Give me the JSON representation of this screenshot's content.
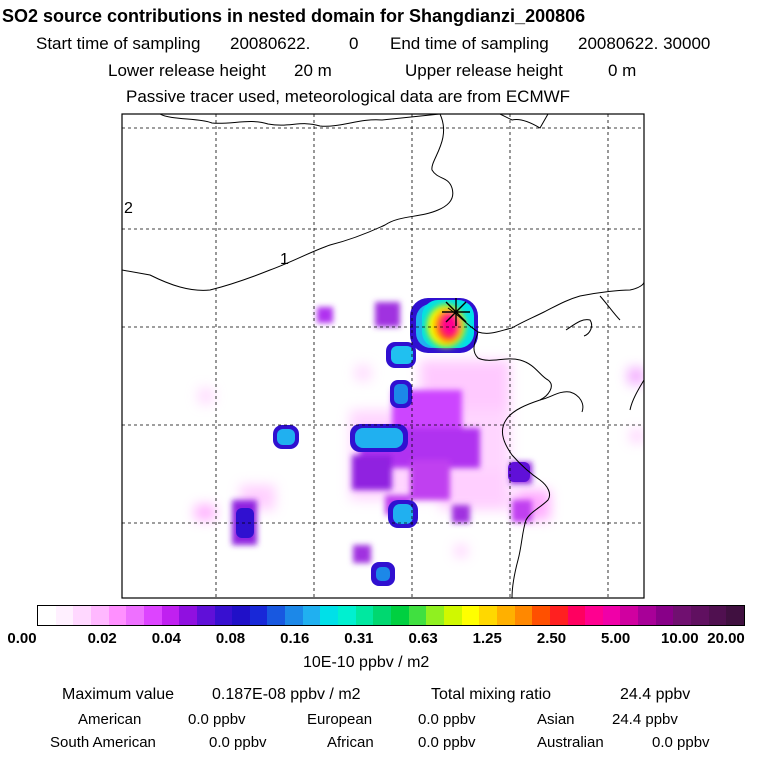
{
  "header": {
    "title": "SO2 source contributions in nested domain for Shangdianzi_200806",
    "start_label": "Start time of sampling",
    "start_value": "20080622.",
    "start_hour": "0",
    "end_label": "End time of sampling",
    "end_value": "20080622. 30000",
    "lower_label": "Lower release height",
    "lower_value": "20 m",
    "upper_label": "Upper release height",
    "upper_value": "0 m",
    "tracer_line": "Passive tracer used, meteorological data are from ECMWF"
  },
  "map": {
    "region_labels": [
      "2",
      "1"
    ],
    "station_marker": "Shangdianzi",
    "frame_color": "#000000",
    "gridline_color": "#000000"
  },
  "colorbar": {
    "unit": "10E-10 ppbv / m2",
    "tick_labels": [
      "0.00",
      "0.02",
      "0.04",
      "0.08",
      "0.16",
      "0.31",
      "0.63",
      "1.25",
      "2.50",
      "5.00",
      "10.00",
      "20.00"
    ],
    "colors": [
      "#ffffff",
      "#fff0ff",
      "#ffd8ff",
      "#ffb8ff",
      "#ff90ff",
      "#ee70ff",
      "#dd44ff",
      "#c020f0",
      "#9010e0",
      "#6010d8",
      "#3810d0",
      "#2010c8",
      "#1828d8",
      "#1858e0",
      "#1c88e8",
      "#20b0f0",
      "#00e0e8",
      "#00f0d0",
      "#00e8a0",
      "#00d870",
      "#00d040",
      "#40e040",
      "#90f020",
      "#d0f800",
      "#ffff00",
      "#ffd800",
      "#ffb000",
      "#ff8800",
      "#ff5000",
      "#ff2020",
      "#ff0060",
      "#ff0090",
      "#f000a8",
      "#d000a0",
      "#a80098",
      "#880088",
      "#701070",
      "#601060",
      "#501050",
      "#401040"
    ]
  },
  "summary": {
    "max_label": "Maximum value",
    "max_value": "0.187E-08 ppbv / m2",
    "total_label": "Total mixing ratio",
    "total_value": "24.4 ppbv",
    "regions": [
      {
        "name": "American",
        "value": "0.0 ppbv"
      },
      {
        "name": "European",
        "value": "0.0 ppbv"
      },
      {
        "name": "Asian",
        "value": "24.4 ppbv"
      },
      {
        "name": "South American",
        "value": "0.0 ppbv"
      },
      {
        "name": "African",
        "value": "0.0 ppbv"
      },
      {
        "name": "Australian",
        "value": "0.0 ppbv"
      }
    ]
  }
}
